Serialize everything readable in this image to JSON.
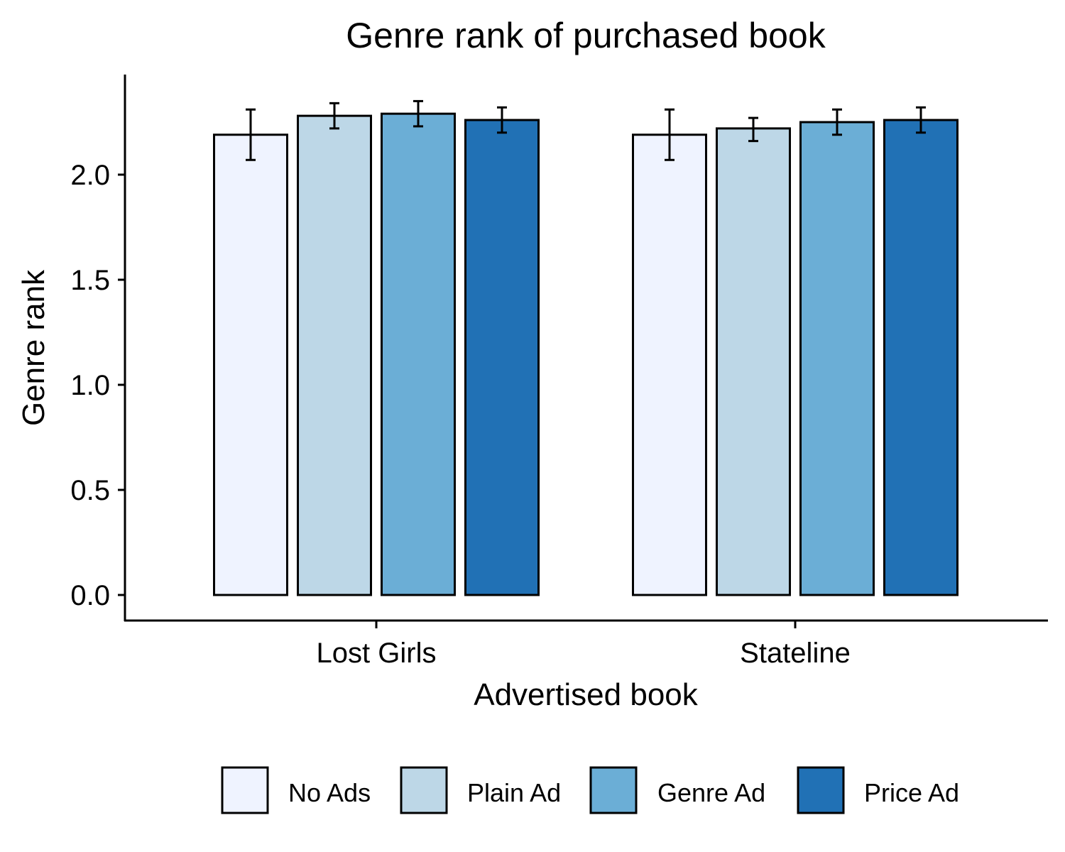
{
  "chart_data": {
    "type": "bar",
    "title": "Genre rank of purchased book",
    "xlabel": "Advertised book",
    "ylabel": "Genre rank",
    "categories": [
      "Lost Girls",
      "Stateline"
    ],
    "ylim": [
      0,
      2.45
    ],
    "yticks": [
      0.0,
      0.5,
      1.0,
      1.5,
      2.0
    ],
    "ytick_labels": [
      "0.0",
      "0.5",
      "1.0",
      "1.5",
      "2.0"
    ],
    "grid": false,
    "legend_position": "bottom",
    "series": [
      {
        "name": "No Ads",
        "color": "#eff3ff",
        "values": [
          2.19,
          2.19
        ],
        "error_low": [
          2.07,
          2.07
        ],
        "error_high": [
          2.31,
          2.31
        ]
      },
      {
        "name": "Plain Ad",
        "color": "#bdd7e7",
        "values": [
          2.28,
          2.22
        ],
        "error_low": [
          2.22,
          2.16
        ],
        "error_high": [
          2.34,
          2.27
        ]
      },
      {
        "name": "Genre Ad",
        "color": "#6baed6",
        "values": [
          2.29,
          2.25
        ],
        "error_low": [
          2.23,
          2.19
        ],
        "error_high": [
          2.35,
          2.31
        ]
      },
      {
        "name": "Price Ad",
        "color": "#2171b5",
        "values": [
          2.26,
          2.26
        ],
        "error_low": [
          2.2,
          2.2
        ],
        "error_high": [
          2.32,
          2.32
        ]
      }
    ]
  }
}
